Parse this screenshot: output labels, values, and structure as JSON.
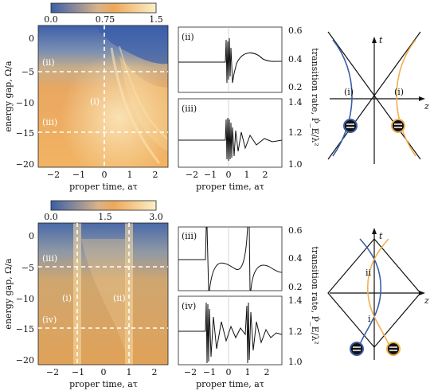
{
  "top": {
    "colorbar": {
      "ticks": [
        "0.0",
        "0.75",
        "1.5"
      ]
    },
    "heatmap": {
      "xticks": [
        "−2",
        "−1",
        "0",
        "1",
        "2"
      ],
      "yticks": [
        "0",
        "−5",
        "−10",
        "−15",
        "−20"
      ],
      "xlabel": "proper time, aτ",
      "ylabel": "energy gap, Ω/a",
      "labels": [
        "(ii)",
        "(i)",
        "(iii)"
      ]
    },
    "line_panels": [
      {
        "tag": "(ii)",
        "yticks": [
          "0.6",
          "0.4",
          "0.2"
        ]
      },
      {
        "tag": "(iii)",
        "yticks": [
          "1.4",
          "1.2",
          "1.0"
        ]
      }
    ],
    "line_xticks": [
      "−2",
      "−1",
      "0",
      "1",
      "2"
    ],
    "line_xlabel": "proper time, aτ",
    "ylabel_right": "transition rate, Ṗ_E/λ²",
    "diagram": {
      "t": "t",
      "z": "z",
      "labels": [
        "(i)",
        "(i)"
      ]
    }
  },
  "bottom": {
    "colorbar": {
      "ticks": [
        "0.0",
        "1.5",
        "3.0"
      ]
    },
    "heatmap": {
      "xticks": [
        "−2",
        "−1",
        "0",
        "1",
        "2"
      ],
      "yticks": [
        "0",
        "−5",
        "−10",
        "−15",
        "−20"
      ],
      "xlabel": "proper time, aτ",
      "ylabel": "energy gap, Ω/a",
      "labels": [
        "(iii)",
        "(i)",
        "(ii)",
        "(iv)"
      ]
    },
    "line_panels": [
      {
        "tag": "(iii)",
        "yticks": [
          "0.6",
          "0.4",
          "0.2"
        ]
      },
      {
        "tag": "(iv)",
        "yticks": [
          "1.4",
          "1.2",
          "1.0"
        ]
      }
    ],
    "line_xticks": [
      "−2",
      "−1",
      "0",
      "1",
      "2"
    ],
    "line_xlabel": "proper time, aτ",
    "ylabel_right": "transition rate, Ṗ_E/λ²",
    "diagram": {
      "t": "t",
      "z": "z",
      "labels": [
        "ii",
        "i"
      ]
    }
  },
  "colors": {
    "blue": "#3a5ea8",
    "orange": "#f0b050",
    "cream": "#fbf0c8"
  }
}
